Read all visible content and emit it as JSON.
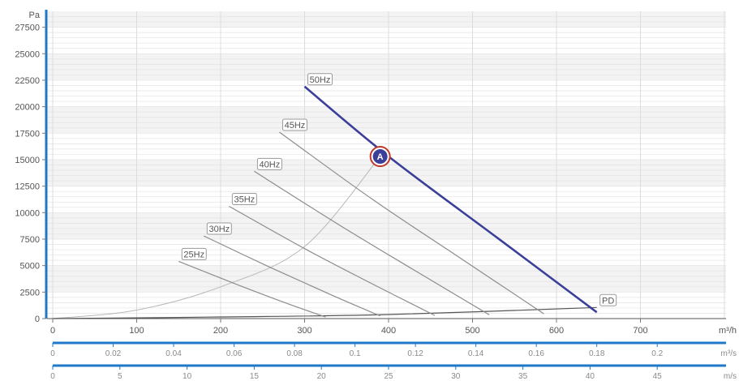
{
  "chart_data": {
    "type": "line",
    "title": "",
    "y_axis": {
      "unit": "Pa",
      "ylim": [
        0,
        29000
      ],
      "ticks": [
        0,
        2500,
        5000,
        7500,
        10000,
        12500,
        15000,
        17500,
        20000,
        22500,
        25000,
        27500
      ],
      "tick_labels": [
        "0",
        "2500",
        "5000",
        "7500",
        "10000",
        "12500",
        "15000",
        "17500",
        "20000",
        "22500",
        "25000",
        "27500"
      ]
    },
    "x_axis": {
      "unit": "m³/h",
      "xlim": [
        0,
        800
      ],
      "ticks": [
        0,
        100,
        200,
        300,
        400,
        500,
        600,
        700
      ],
      "tick_labels": [
        "0",
        "100",
        "200",
        "300",
        "400",
        "500",
        "600",
        "700"
      ]
    },
    "secondary_axes": [
      {
        "unit": "m³/s",
        "factor": 3600,
        "ticks": [
          0,
          0.02,
          0.04,
          0.06,
          0.08,
          0.1,
          0.12,
          0.14,
          0.16,
          0.18,
          0.2
        ],
        "tick_labels": [
          "0",
          "0.02",
          "0.04",
          "0.06",
          "0.08",
          "0.1",
          "0.12",
          "0.14",
          "0.16",
          "0.18",
          "0.2"
        ]
      },
      {
        "unit": "m/s",
        "factor": 16,
        "ticks": [
          0,
          5,
          10,
          15,
          20,
          25,
          30,
          35,
          40,
          45
        ],
        "tick_labels": [
          "0",
          "5",
          "10",
          "15",
          "20",
          "25",
          "30",
          "35",
          "40",
          "45"
        ]
      }
    ],
    "grid": true,
    "series": [
      {
        "name": "25Hz",
        "points": [
          [
            150,
            5400
          ],
          [
            220,
            3200
          ],
          [
            280,
            1400
          ],
          [
            325,
            150
          ]
        ],
        "highlight": false
      },
      {
        "name": "30Hz",
        "points": [
          [
            180,
            7800
          ],
          [
            260,
            4800
          ],
          [
            330,
            2300
          ],
          [
            390,
            250
          ]
        ],
        "highlight": false
      },
      {
        "name": "35Hz",
        "points": [
          [
            210,
            10600
          ],
          [
            300,
            6600
          ],
          [
            380,
            3300
          ],
          [
            455,
            300
          ]
        ],
        "highlight": false
      },
      {
        "name": "40Hz",
        "points": [
          [
            240,
            13900
          ],
          [
            340,
            8900
          ],
          [
            430,
            4600
          ],
          [
            520,
            350
          ]
        ],
        "highlight": false
      },
      {
        "name": "45Hz",
        "points": [
          [
            270,
            17600
          ],
          [
            380,
            11300
          ],
          [
            480,
            6000
          ],
          [
            585,
            450
          ]
        ],
        "highlight": false
      },
      {
        "name": "50Hz",
        "points": [
          [
            300,
            21900
          ],
          [
            400,
            15300
          ],
          [
            530,
            7600
          ],
          [
            648,
            600
          ]
        ],
        "highlight": true
      }
    ],
    "system_curves": [
      {
        "points": [
          [
            0,
            0
          ],
          [
            100,
            800
          ],
          [
            200,
            3000
          ],
          [
            300,
            6800
          ],
          [
            390,
            15300
          ]
        ]
      },
      {
        "points": [
          [
            0,
            0
          ],
          [
            200,
            150
          ],
          [
            400,
            380
          ],
          [
            648,
            1050
          ]
        ]
      }
    ],
    "annotations": [
      {
        "label": "A",
        "x": 390,
        "y": 15300
      },
      {
        "label": "PD",
        "x": 648,
        "y": 1050
      }
    ],
    "colors": {
      "axis": "#1f78c8",
      "highlight": "#3c3f99",
      "marker_ring": "#c0392b",
      "curves": "#8c8c8c",
      "system_curve": "#b8b8b8",
      "grid": "#e3e3e3",
      "band": "#f3f3f3"
    }
  }
}
